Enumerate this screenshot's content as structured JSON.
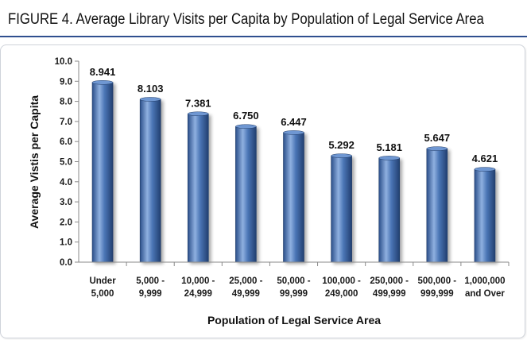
{
  "figure_title": "FIGURE 4. Average Library Visits per Capita by Population of Legal Service Area",
  "colors": {
    "bar": "#4a75b5",
    "bar_dark": "#2b4f8a",
    "bar_light": "#8fb0e0",
    "rule": "#2f4f8f"
  },
  "chart_data": {
    "type": "bar",
    "title": "",
    "xlabel": "Population of Legal Service Area",
    "ylabel": "Average Vistis per Capita",
    "ylim": [
      0,
      10
    ],
    "yticks": [
      "0.0",
      "1.0",
      "2.0",
      "3.0",
      "4.0",
      "5.0",
      "6.0",
      "7.0",
      "8.0",
      "9.0",
      "10.0"
    ],
    "grid": false,
    "categories": [
      [
        "Under",
        "5,000"
      ],
      [
        "5,000 -",
        "9,999"
      ],
      [
        "10,000 -",
        "24,999"
      ],
      [
        "25,000 -",
        "49,999"
      ],
      [
        "50,000 -",
        "99,999"
      ],
      [
        "100,000 -",
        "249,000"
      ],
      [
        "250,000 -",
        "499,999"
      ],
      [
        "500,000 -",
        "999,999"
      ],
      [
        "1,000,000",
        "and Over"
      ]
    ],
    "values": [
      8.941,
      8.103,
      7.381,
      6.75,
      6.447,
      5.292,
      5.181,
      5.647,
      4.621
    ],
    "value_labels": [
      "8.941",
      "8.103",
      "7.381",
      "6.750",
      "6.447",
      "5.292",
      "5.181",
      "5.647",
      "4.621"
    ]
  }
}
